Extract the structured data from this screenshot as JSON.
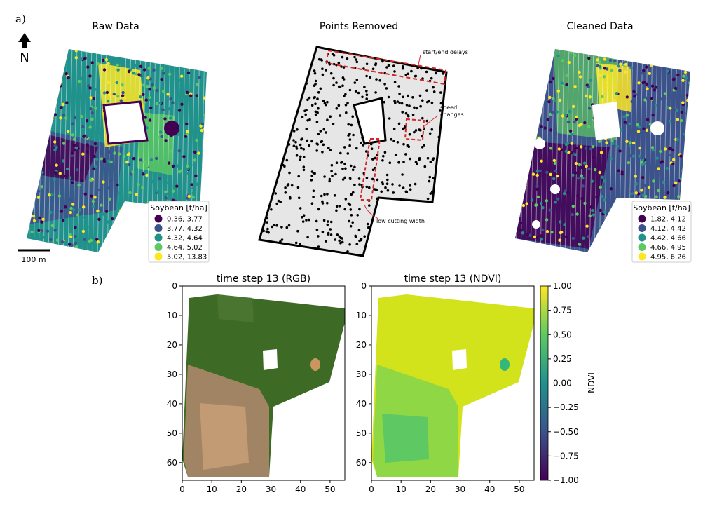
{
  "figure_labels": {
    "a": "a)",
    "b": "b)"
  },
  "north_label": "N",
  "scale_bar_label": "100 m",
  "colors": {
    "viridis": [
      "#440154",
      "#3b528b",
      "#21918c",
      "#5ec962",
      "#fde725"
    ],
    "removed_points": "#000000",
    "field_background": "#e6e6e6",
    "annotation": "#d62728"
  },
  "panel_a": {
    "raw": {
      "title": "Raw Data",
      "legend_title": "Soybean [t/ha]",
      "legend_bins": [
        "0.36,  3.77",
        "3.77,  4.32",
        "4.32,  4.64",
        "4.64,  5.02",
        "5.02, 13.83"
      ]
    },
    "removed": {
      "title": "Points Removed",
      "annotations": [
        "start/end delays",
        "speed",
        "changes",
        "low cutting width"
      ]
    },
    "cleaned": {
      "title": "Cleaned Data",
      "legend_title": "Soybean [t/ha]",
      "legend_bins": [
        "1.82, 4.12",
        "4.12, 4.42",
        "4.42, 4.66",
        "4.66, 4.95",
        "4.95, 6.26"
      ]
    }
  },
  "chart_data": [
    {
      "type": "heatmap",
      "title": "time step 13 (RGB)",
      "xlim": [
        0,
        55
      ],
      "ylim": [
        66,
        0
      ],
      "xticks": [
        "0",
        "10",
        "20",
        "30",
        "40",
        "50"
      ],
      "yticks": [
        "0",
        "10",
        "20",
        "30",
        "40",
        "50",
        "60"
      ]
    },
    {
      "type": "heatmap",
      "title": "time step 13 (NDVI)",
      "xlim": [
        0,
        55
      ],
      "ylim": [
        66,
        0
      ],
      "xticks": [
        "0",
        "10",
        "20",
        "30",
        "40",
        "50"
      ],
      "yticks": [
        "0",
        "10",
        "20",
        "30",
        "40",
        "50",
        "60"
      ],
      "colorbar": {
        "label": "NDVI",
        "range": [
          -1.0,
          1.0
        ],
        "ticks": [
          "1.00",
          "0.75",
          "0.50",
          "0.25",
          "0.00",
          "−0.25",
          "−0.50",
          "−0.75",
          "−1.00"
        ]
      }
    }
  ]
}
